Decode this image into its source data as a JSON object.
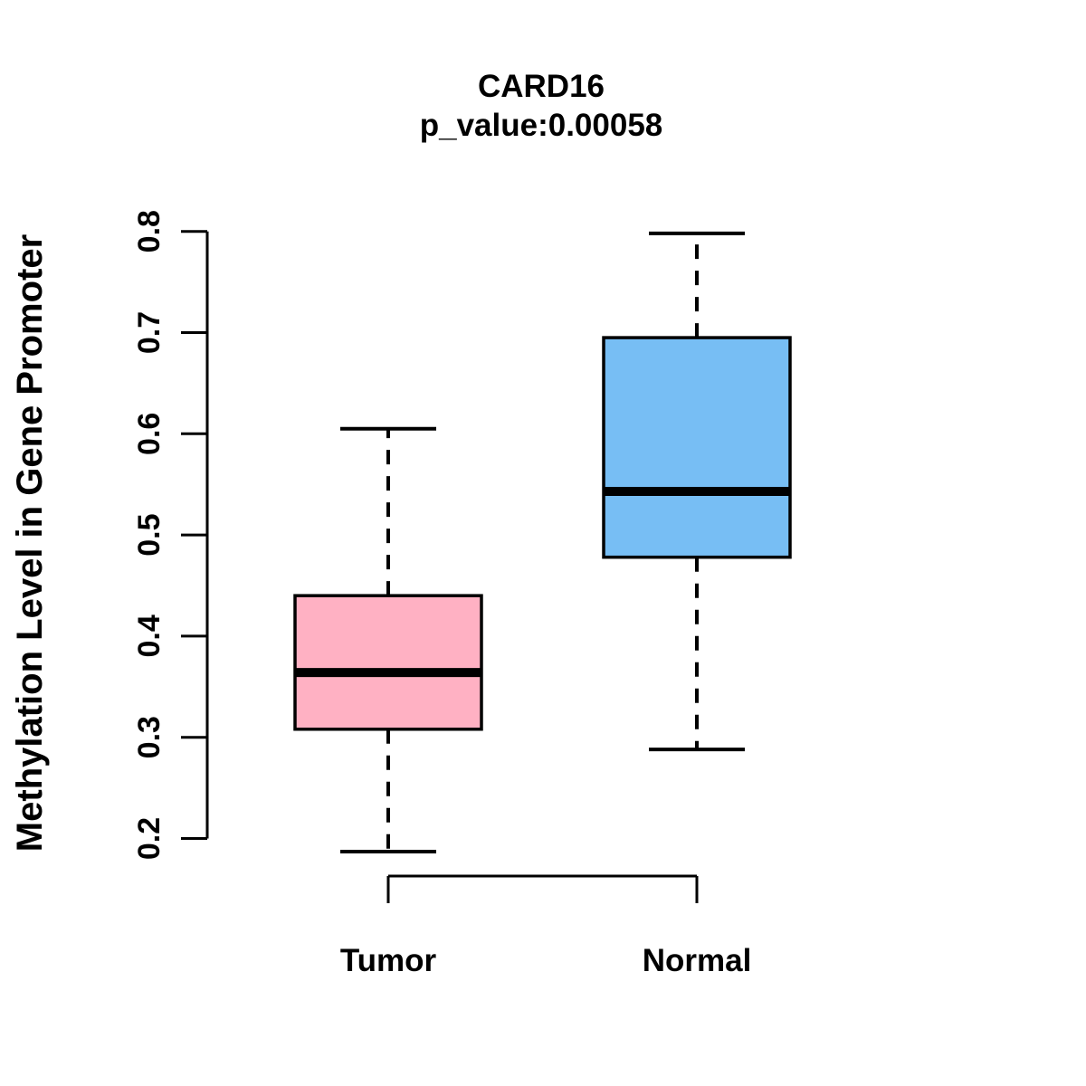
{
  "figure": {
    "background": "#ffffff",
    "foreground": "#000000"
  },
  "chart_data": {
    "type": "boxplot",
    "title": "CARD16",
    "subtitle": "p_value:0.00058",
    "ylabel": "Methylation Level in Gene Promoter",
    "xlabel": "",
    "ylim": [
      0.2,
      0.8
    ],
    "yticks": [
      "0.2",
      "0.3",
      "0.4",
      "0.5",
      "0.6",
      "0.7",
      "0.8"
    ],
    "grid": false,
    "legend": "none",
    "categories": [
      "Tumor",
      "Normal"
    ],
    "series": [
      {
        "name": "Tumor",
        "whisker_low": 0.187,
        "q1": 0.308,
        "median": 0.364,
        "q3": 0.44,
        "whisker_high": 0.605,
        "box_color": "#FFB1C3"
      },
      {
        "name": "Normal",
        "whisker_low": 0.288,
        "q1": 0.478,
        "median": 0.543,
        "q3": 0.695,
        "whisker_high": 0.798,
        "box_color": "#77BEF4"
      }
    ]
  }
}
